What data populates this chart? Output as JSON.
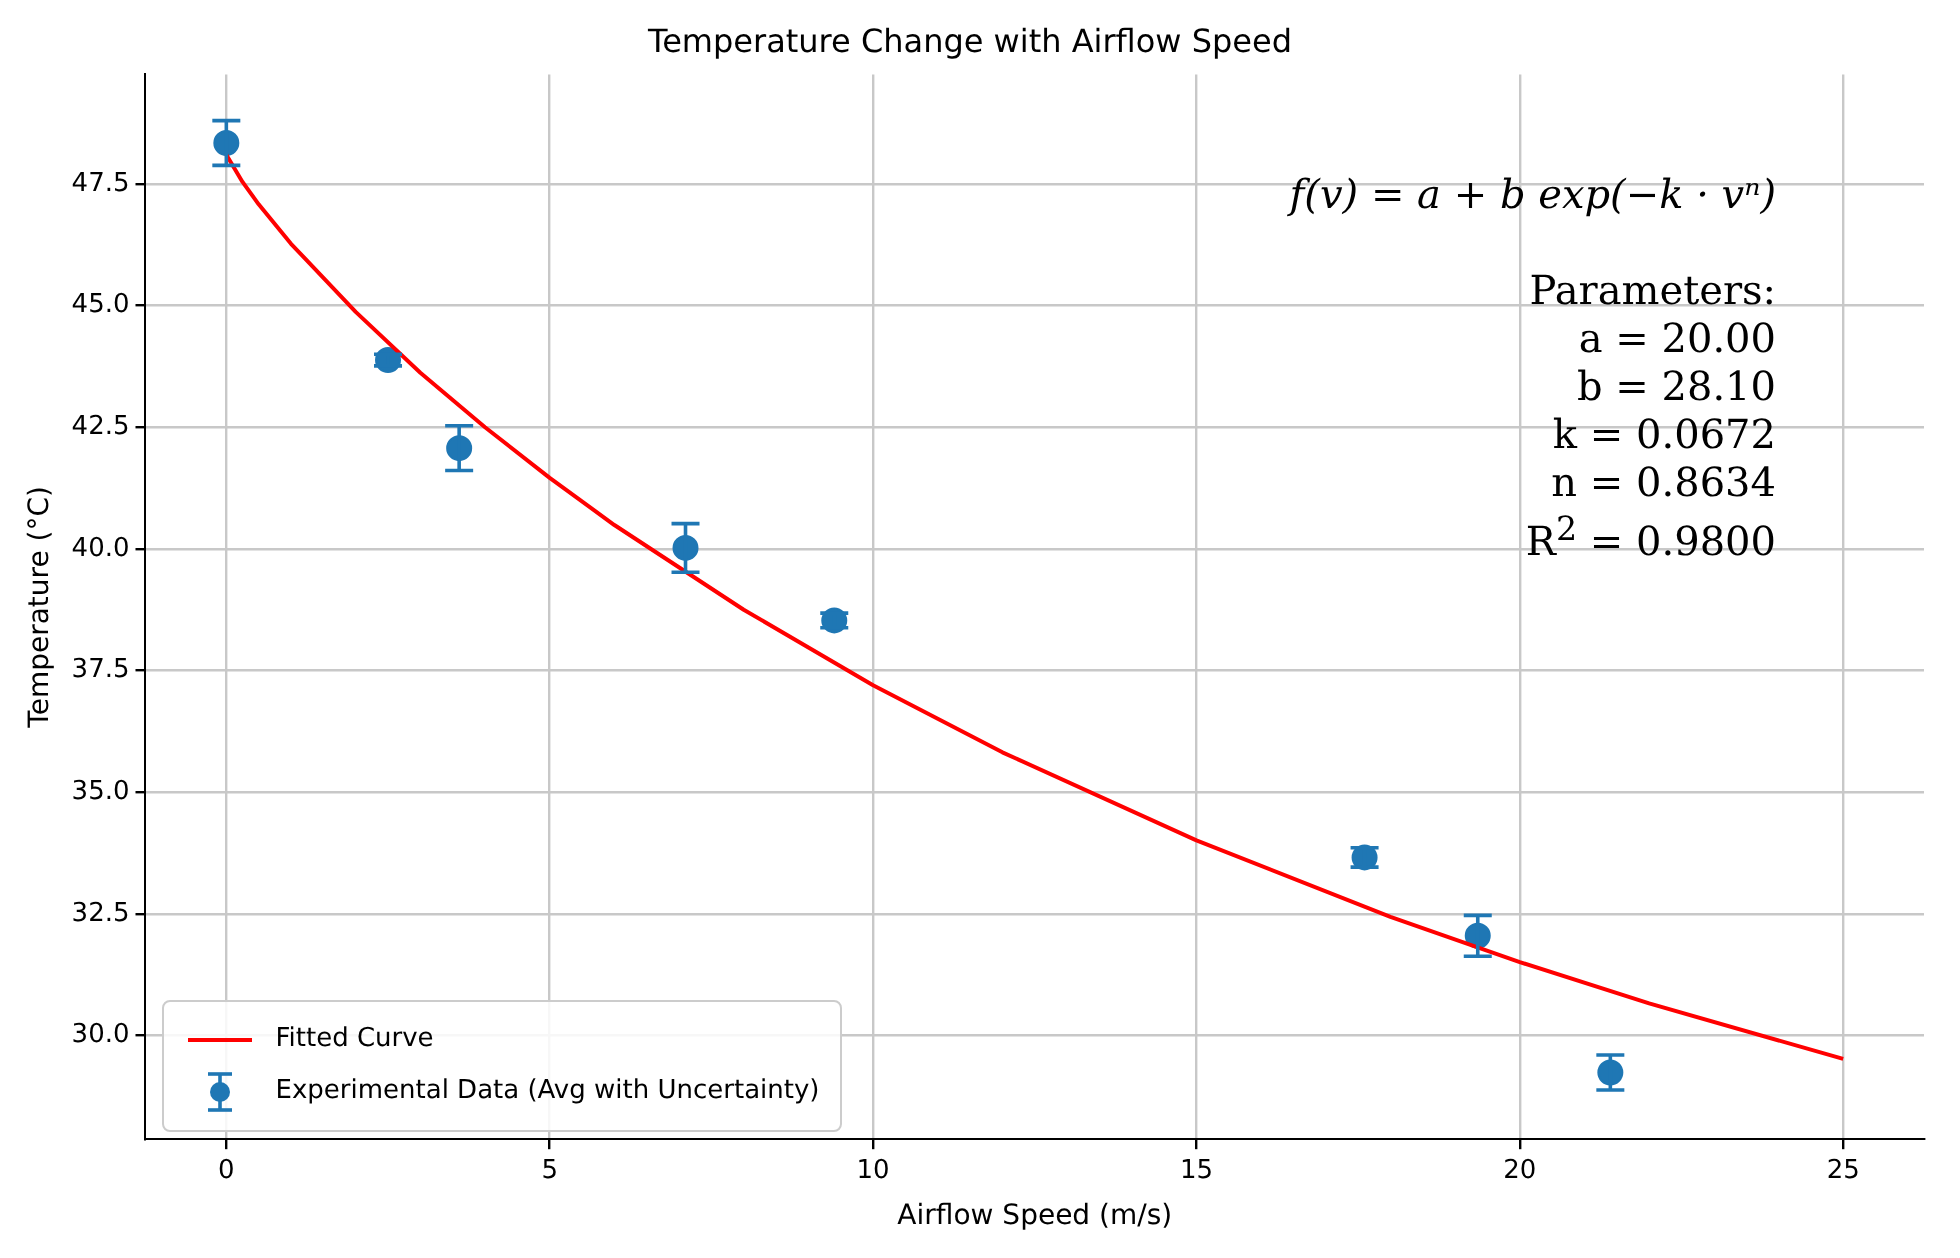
{
  "chart_data": {
    "type": "scatter",
    "title": "Temperature Change with Airflow Speed",
    "xlabel": "Airflow Speed (m/s)",
    "ylabel": "Temperature (°C)",
    "xlim": [
      -1.25,
      26.25
    ],
    "ylim": [
      27.87,
      49.75
    ],
    "xticks": [
      0,
      5,
      10,
      15,
      20,
      25
    ],
    "yticks": [
      {
        "value": 30,
        "label": "30.0"
      },
      {
        "value": 32.5,
        "label": "32.5"
      },
      {
        "value": 35,
        "label": "35.0"
      },
      {
        "value": 37.5,
        "label": "37.5"
      },
      {
        "value": 40,
        "label": "40.0"
      },
      {
        "value": 42.5,
        "label": "42.5"
      },
      {
        "value": 45,
        "label": "45.0"
      },
      {
        "value": 47.5,
        "label": "47.5"
      }
    ],
    "grid": true,
    "legend": "bottom left",
    "series": [
      {
        "name": "Fitted Curve",
        "type": "line",
        "color": "#ff0000",
        "marker": "none",
        "line_style": "solid",
        "x": [
          0,
          0.25,
          0.5,
          1,
          2,
          3,
          4,
          5,
          6,
          8,
          10,
          12,
          15,
          18,
          20,
          22,
          25
        ],
        "values": [
          48.1,
          47.54,
          47.08,
          46.27,
          44.87,
          43.62,
          42.5,
          41.46,
          40.49,
          38.75,
          37.2,
          35.82,
          34.01,
          32.44,
          31.51,
          30.66,
          29.52
        ]
      },
      {
        "name": "Experimental Data (Avg with Uncertainty)",
        "type": "scatter",
        "color": "#1f77b4",
        "marker": "circle",
        "x": [
          0,
          2.5,
          3.6,
          7.1,
          9.4,
          17.6,
          19.35,
          21.4
        ],
        "values": [
          48.34,
          43.88,
          42.07,
          40.02,
          38.53,
          33.66,
          32.05,
          29.24
        ],
        "errors": [
          0.46,
          0.12,
          0.46,
          0.5,
          0.15,
          0.2,
          0.42,
          0.36
        ]
      }
    ],
    "annotations": [
      "f(v) = a + b exp(−k · vⁿ)",
      "Parameters:",
      "a = 20.00",
      "b = 28.10",
      "k = 0.0672",
      "n = 0.8634",
      "R$^{2}$ = 0.9800"
    ]
  }
}
